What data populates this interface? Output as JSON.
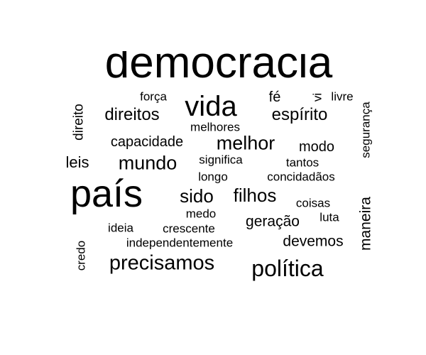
{
  "wordcloud": {
    "text_color": "#000000",
    "background": "#ffffff",
    "words": [
      {
        "text": "democracia",
        "weight": 62,
        "vertical": false
      },
      {
        "text": "país",
        "weight": 54,
        "vertical": false
      },
      {
        "text": "vida",
        "weight": 40,
        "vertical": false
      },
      {
        "text": "política",
        "weight": 32,
        "vertical": false
      },
      {
        "text": "precisamos",
        "weight": 29,
        "vertical": false
      },
      {
        "text": "melhor",
        "weight": 27,
        "vertical": false
      },
      {
        "text": "mundo",
        "weight": 27,
        "vertical": false
      },
      {
        "text": "sido",
        "weight": 26,
        "vertical": false
      },
      {
        "text": "filhos",
        "weight": 26,
        "vertical": false
      },
      {
        "text": "direitos",
        "weight": 24,
        "vertical": false
      },
      {
        "text": "espírito",
        "weight": 24,
        "vertical": false
      },
      {
        "text": "leis",
        "weight": 22,
        "vertical": false
      },
      {
        "text": "geração",
        "weight": 21,
        "vertical": false
      },
      {
        "text": "devemos",
        "weight": 21,
        "vertical": false
      },
      {
        "text": "maneira",
        "weight": 21,
        "vertical": true
      },
      {
        "text": "capacidade",
        "weight": 20,
        "vertical": false
      },
      {
        "text": "modo",
        "weight": 20,
        "vertical": false
      },
      {
        "text": "fé",
        "weight": 20,
        "vertical": false
      },
      {
        "text": "direito",
        "weight": 19,
        "vertical": true
      },
      {
        "text": "melhores",
        "weight": 17,
        "vertical": false
      },
      {
        "text": "significa",
        "weight": 17,
        "vertical": false
      },
      {
        "text": "tantos",
        "weight": 17,
        "vertical": false
      },
      {
        "text": "longo",
        "weight": 17,
        "vertical": false
      },
      {
        "text": "concidadãos",
        "weight": 17,
        "vertical": false
      },
      {
        "text": "coisas",
        "weight": 17,
        "vertical": false
      },
      {
        "text": "medo",
        "weight": 17,
        "vertical": false
      },
      {
        "text": "luta",
        "weight": 17,
        "vertical": false
      },
      {
        "text": "ideia",
        "weight": 17,
        "vertical": false
      },
      {
        "text": "crescente",
        "weight": 17,
        "vertical": false
      },
      {
        "text": "independentemente",
        "weight": 17,
        "vertical": false
      },
      {
        "text": "força",
        "weight": 17,
        "vertical": false
      },
      {
        "text": "livre",
        "weight": 17,
        "vertical": false
      },
      {
        "text": "segurança",
        "weight": 17,
        "vertical": true
      },
      {
        "text": "credo",
        "weight": 17,
        "vertical": true
      },
      {
        "text": "vi",
        "weight": 17,
        "vertical": true
      }
    ]
  }
}
